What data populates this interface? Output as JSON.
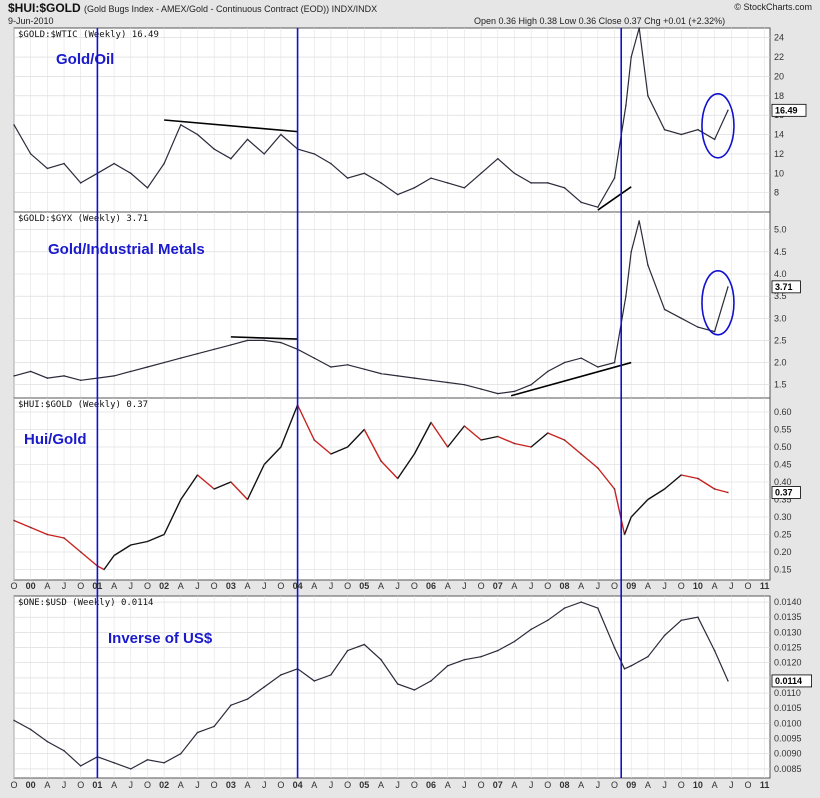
{
  "header": {
    "symbol": "$HUI:$GOLD",
    "description": "(Gold Bugs Index - AMEX/Gold - Continuous Contract (EOD)) INDX/INDX",
    "date": "9-Jun-2010",
    "quote": "Open 0.36  High 0.38  Low 0.36  Close 0.37  Chg +0.01 (+2.32%)",
    "watermark": "© StockCharts.com"
  },
  "x_axis": {
    "tick_labels": [
      "O",
      "00",
      "A",
      "J",
      "O",
      "01",
      "A",
      "J",
      "O",
      "02",
      "A",
      "J",
      "O",
      "03",
      "A",
      "J",
      "O",
      "04",
      "A",
      "J",
      "O",
      "05",
      "A",
      "J",
      "O",
      "06",
      "A",
      "J",
      "O",
      "07",
      "A",
      "J",
      "O",
      "08",
      "A",
      "J",
      "O",
      "09",
      "A",
      "J",
      "O",
      "10",
      "A",
      "J",
      "O",
      "11"
    ]
  },
  "colors": {
    "line": "#2b2b3a",
    "down": "#c8231e",
    "up": "#111111",
    "marker": "#1010d0",
    "annot": "#1a1acc"
  },
  "chart_data": [
    {
      "type": "line",
      "panel_label": "$GOLD:$WTIC (Weekly) 16.49",
      "annotation": "Gold/Oil",
      "last_value": "16.49",
      "x": [
        1999.75,
        2000.0,
        2000.25,
        2000.5,
        2000.75,
        2001.0,
        2001.25,
        2001.5,
        2001.75,
        2002.0,
        2002.25,
        2002.5,
        2002.75,
        2003.0,
        2003.25,
        2003.5,
        2003.75,
        2004.0,
        2004.25,
        2004.5,
        2004.75,
        2005.0,
        2005.25,
        2005.5,
        2005.75,
        2006.0,
        2006.25,
        2006.5,
        2006.75,
        2007.0,
        2007.25,
        2007.5,
        2007.75,
        2008.0,
        2008.25,
        2008.5,
        2008.75,
        2008.92,
        2009.0,
        2009.12,
        2009.25,
        2009.5,
        2009.75,
        2010.0,
        2010.25,
        2010.45
      ],
      "values": [
        15.0,
        12.0,
        10.5,
        11.0,
        9.0,
        10.0,
        11.0,
        10.0,
        8.5,
        11.0,
        15.0,
        14.0,
        12.5,
        11.5,
        13.5,
        12.0,
        14.0,
        12.5,
        12.0,
        11.0,
        9.5,
        10.0,
        9.0,
        7.8,
        8.5,
        9.5,
        9.0,
        8.5,
        10.0,
        11.5,
        10.0,
        9.0,
        9.0,
        8.5,
        7.0,
        6.5,
        9.5,
        17.0,
        22.0,
        25.0,
        18.0,
        14.5,
        14.0,
        14.5,
        13.5,
        16.5
      ],
      "ylim": [
        6,
        25
      ],
      "yticks": [
        8,
        10,
        12,
        14,
        16,
        18,
        20,
        22,
        24
      ],
      "circle": {
        "x": 2010.3,
        "y": 14.9
      }
    },
    {
      "type": "line",
      "panel_label": "$GOLD:$GYX (Weekly) 3.71",
      "annotation": "Gold/Industrial Metals",
      "last_value": "3.71",
      "x": [
        1999.75,
        2000.0,
        2000.25,
        2000.5,
        2000.75,
        2001.0,
        2001.25,
        2001.5,
        2001.75,
        2002.0,
        2002.25,
        2002.5,
        2002.75,
        2003.0,
        2003.25,
        2003.5,
        2003.75,
        2004.0,
        2004.25,
        2004.5,
        2004.75,
        2005.0,
        2005.25,
        2005.5,
        2005.75,
        2006.0,
        2006.25,
        2006.5,
        2006.75,
        2007.0,
        2007.25,
        2007.5,
        2007.75,
        2008.0,
        2008.25,
        2008.5,
        2008.75,
        2008.92,
        2009.0,
        2009.12,
        2009.25,
        2009.5,
        2009.75,
        2010.0,
        2010.25,
        2010.45
      ],
      "values": [
        1.7,
        1.8,
        1.65,
        1.7,
        1.6,
        1.65,
        1.7,
        1.8,
        1.9,
        2.0,
        2.1,
        2.2,
        2.3,
        2.4,
        2.5,
        2.5,
        2.45,
        2.3,
        2.1,
        1.9,
        1.95,
        1.85,
        1.75,
        1.7,
        1.65,
        1.6,
        1.55,
        1.5,
        1.4,
        1.3,
        1.35,
        1.5,
        1.8,
        2.0,
        2.1,
        1.9,
        2.0,
        3.5,
        4.5,
        5.2,
        4.2,
        3.2,
        3.0,
        2.8,
        2.7,
        3.71
      ],
      "ylim": [
        1.2,
        5.4
      ],
      "yticks": [
        1.5,
        2.0,
        2.5,
        3.0,
        3.5,
        4.0,
        4.5,
        5.0
      ],
      "yticklabels": [
        "1.5",
        "2.0",
        "2.5",
        "3.0",
        "3.5",
        "4.0",
        "4.5",
        "5.0"
      ],
      "circle": {
        "x": 2010.3,
        "y": 3.35
      }
    },
    {
      "type": "line",
      "panel_label": "$HUI:$GOLD (Weekly) 0.37",
      "annotation": "Hui/Gold",
      "last_value": "0.37",
      "x": [
        1999.75,
        2000.0,
        2000.25,
        2000.5,
        2000.75,
        2001.0,
        2001.1,
        2001.25,
        2001.5,
        2001.75,
        2002.0,
        2002.25,
        2002.5,
        2002.75,
        2003.0,
        2003.25,
        2003.5,
        2003.75,
        2004.0,
        2004.25,
        2004.5,
        2004.75,
        2005.0,
        2005.25,
        2005.5,
        2005.75,
        2006.0,
        2006.25,
        2006.5,
        2006.75,
        2007.0,
        2007.25,
        2007.5,
        2007.75,
        2008.0,
        2008.25,
        2008.5,
        2008.75,
        2008.9,
        2009.0,
        2009.25,
        2009.5,
        2009.75,
        2010.0,
        2010.25,
        2010.45
      ],
      "values": [
        0.29,
        0.27,
        0.25,
        0.24,
        0.2,
        0.16,
        0.15,
        0.19,
        0.22,
        0.23,
        0.25,
        0.35,
        0.42,
        0.38,
        0.4,
        0.35,
        0.45,
        0.5,
        0.62,
        0.52,
        0.48,
        0.5,
        0.55,
        0.46,
        0.41,
        0.48,
        0.57,
        0.5,
        0.56,
        0.52,
        0.53,
        0.51,
        0.5,
        0.54,
        0.52,
        0.48,
        0.44,
        0.38,
        0.25,
        0.3,
        0.35,
        0.38,
        0.42,
        0.41,
        0.38,
        0.37
      ],
      "ylim": [
        0.12,
        0.64
      ],
      "yticks": [
        0.15,
        0.2,
        0.25,
        0.3,
        0.35,
        0.4,
        0.45,
        0.5,
        0.55,
        0.6
      ],
      "yticklabels": [
        "0.15",
        "0.20",
        "0.25",
        "0.30",
        "0.35",
        "0.40",
        "0.45",
        "0.50",
        "0.55",
        "0.60"
      ]
    },
    {
      "type": "line",
      "panel_label": "$ONE:$USD (Weekly) 0.0114",
      "annotation": "Inverse of US$",
      "last_value": "0.0114",
      "x": [
        1999.75,
        2000.0,
        2000.25,
        2000.5,
        2000.75,
        2001.0,
        2001.25,
        2001.5,
        2001.75,
        2002.0,
        2002.25,
        2002.5,
        2002.75,
        2003.0,
        2003.25,
        2003.5,
        2003.75,
        2004.0,
        2004.25,
        2004.5,
        2004.75,
        2005.0,
        2005.25,
        2005.5,
        2005.75,
        2006.0,
        2006.25,
        2006.5,
        2006.75,
        2007.0,
        2007.25,
        2007.5,
        2007.75,
        2008.0,
        2008.25,
        2008.5,
        2008.75,
        2008.9,
        2009.0,
        2009.25,
        2009.5,
        2009.75,
        2010.0,
        2010.25,
        2010.45
      ],
      "values": [
        0.0101,
        0.0098,
        0.0094,
        0.0091,
        0.0086,
        0.0089,
        0.0087,
        0.0085,
        0.0088,
        0.0087,
        0.009,
        0.0097,
        0.0099,
        0.0106,
        0.0108,
        0.0112,
        0.0116,
        0.0118,
        0.0114,
        0.0116,
        0.0124,
        0.0126,
        0.0121,
        0.0113,
        0.0111,
        0.0114,
        0.0119,
        0.0121,
        0.0122,
        0.0124,
        0.0127,
        0.0131,
        0.0134,
        0.0138,
        0.014,
        0.0138,
        0.0125,
        0.0118,
        0.0119,
        0.0122,
        0.0129,
        0.0134,
        0.0135,
        0.0124,
        0.0114
      ],
      "ylim": [
        0.0082,
        0.0142
      ],
      "yticks": [
        0.0085,
        0.009,
        0.0095,
        0.01,
        0.0105,
        0.011,
        0.0115,
        0.012,
        0.0125,
        0.013,
        0.0135,
        0.014
      ],
      "yticklabels": [
        "0.0085",
        "0.0090",
        "0.0095",
        "0.0100",
        "0.0105",
        "0.0110",
        "0.0115",
        "0.0120",
        "0.0125",
        "0.0130",
        "0.0135",
        "0.0140"
      ]
    }
  ],
  "vertical_markers_years": [
    2001.0,
    2004.0,
    2008.85
  ],
  "trendlines": [
    {
      "panel": 0,
      "x": [
        2002.0,
        2004.0
      ],
      "y": [
        15.5,
        14.3
      ]
    },
    {
      "panel": 0,
      "x": [
        2008.5,
        2009.0
      ],
      "y": [
        6.2,
        8.6
      ]
    },
    {
      "panel": 1,
      "x": [
        2003.0,
        2004.0
      ],
      "y": [
        2.58,
        2.53
      ]
    },
    {
      "panel": 1,
      "x": [
        2007.2,
        2009.0
      ],
      "y": [
        1.25,
        2.0
      ]
    }
  ]
}
